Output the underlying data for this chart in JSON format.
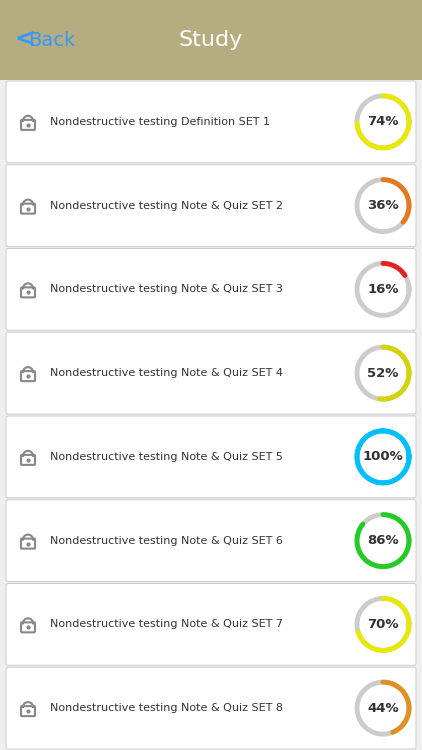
{
  "header_color": "#b5ad7f",
  "header_text": "Study",
  "back_text": "Back",
  "background_color": "#efefef",
  "card_background": "#ffffff",
  "default_track_color": "#cccccc",
  "lock_color": "#888888",
  "text_color": "#333333",
  "percent_color": "#333333",
  "back_arrow_color": "#3399ff",
  "items": [
    {
      "label": "Nondestructive testing Definition SET 1",
      "percent": 74,
      "arc_color": "#e8e800",
      "track_color": "#cccccc"
    },
    {
      "label": "Nondestructive testing Note & Quiz SET 2",
      "percent": 36,
      "arc_color": "#e87820",
      "track_color": "#cccccc"
    },
    {
      "label": "Nondestructive testing Note & Quiz SET 3",
      "percent": 16,
      "arc_color": "#e82020",
      "track_color": "#cccccc"
    },
    {
      "label": "Nondestructive testing Note & Quiz SET 4",
      "percent": 52,
      "arc_color": "#d4d400",
      "track_color": "#cccccc"
    },
    {
      "label": "Nondestructive testing Note & Quiz SET 5",
      "percent": 100,
      "arc_color": "#00bfff",
      "track_color": "#00bfff"
    },
    {
      "label": "Nondestructive testing Note & Quiz SET 6",
      "percent": 86,
      "arc_color": "#22cc22",
      "track_color": "#cccccc"
    },
    {
      "label": "Nondestructive testing Note & Quiz SET 7",
      "percent": 70,
      "arc_color": "#e8e800",
      "track_color": "#cccccc"
    },
    {
      "label": "Nondestructive testing Note & Quiz SET 8",
      "percent": 44,
      "arc_color": "#e09020",
      "track_color": "#cccccc"
    }
  ]
}
